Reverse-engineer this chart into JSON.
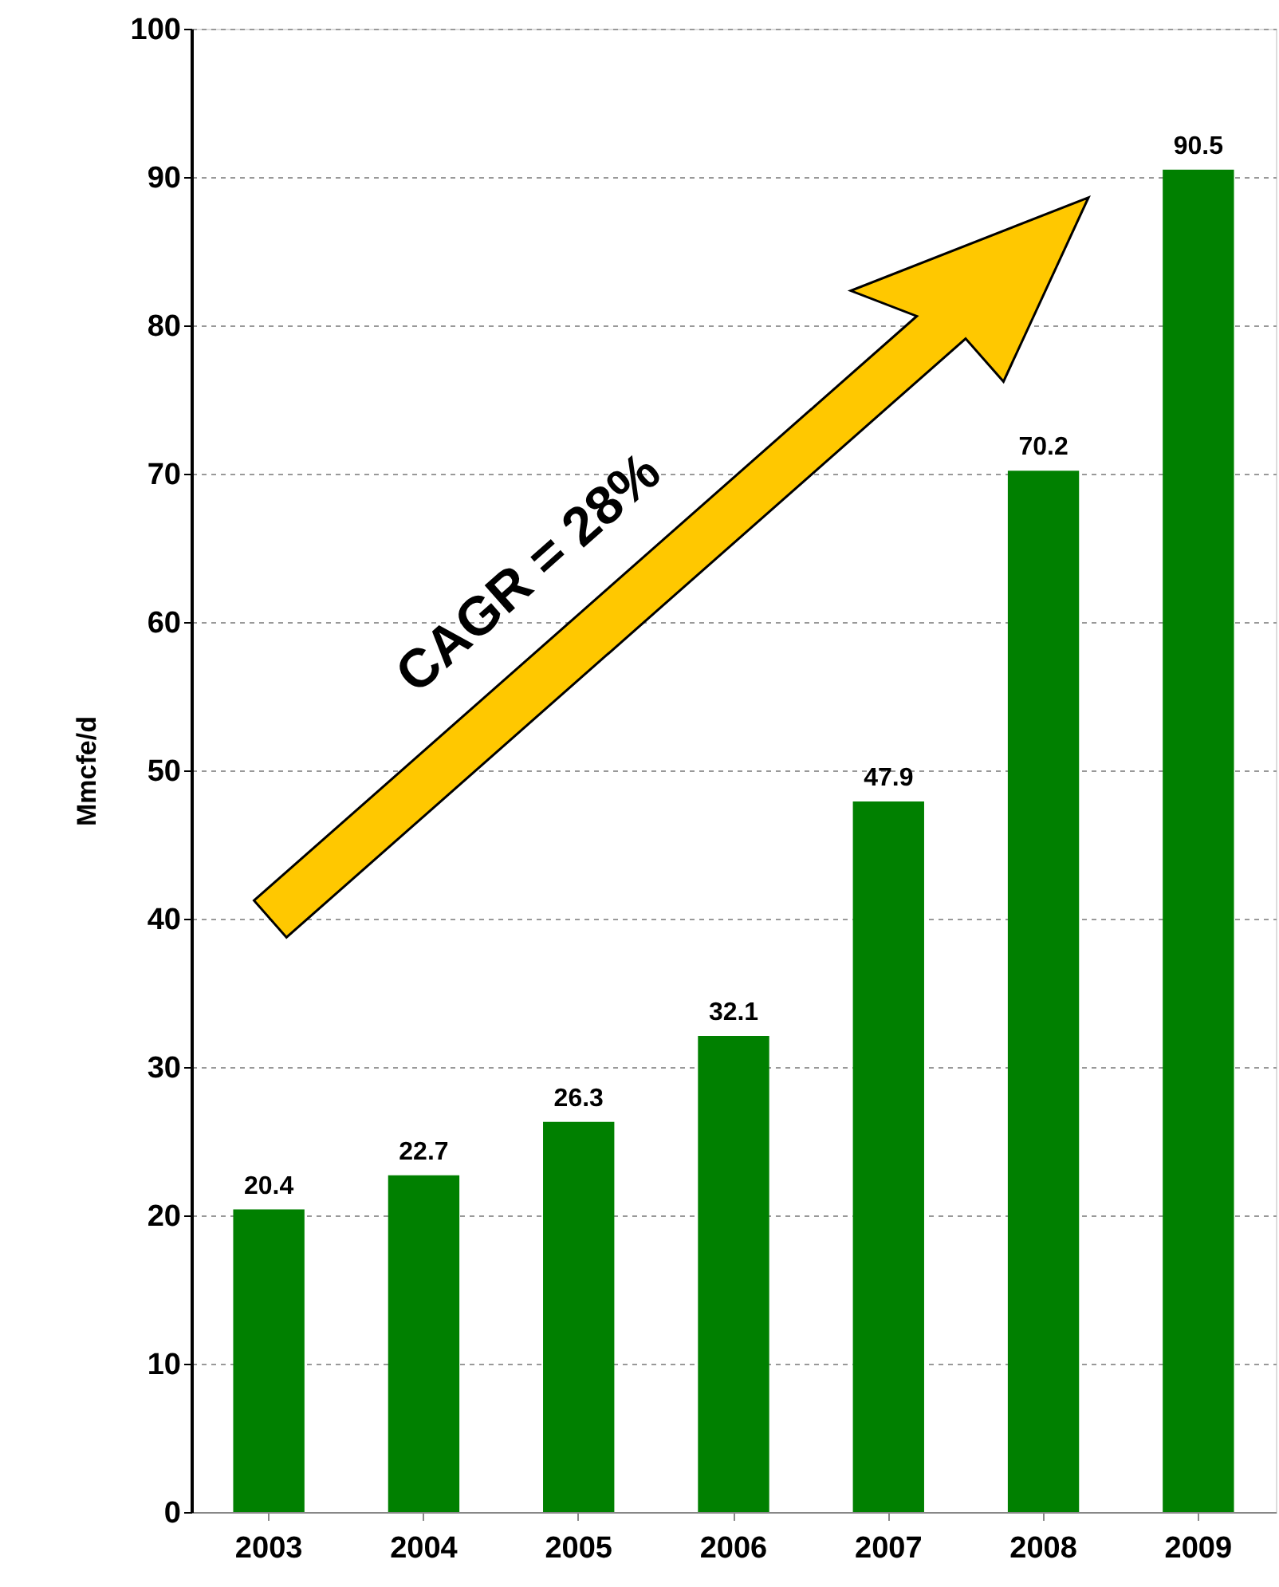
{
  "chart_data": {
    "type": "bar",
    "ylabel": "Mmcfe/d",
    "categories": [
      "2003",
      "2004",
      "2005",
      "2006",
      "2007",
      "2008",
      "2009"
    ],
    "series": [
      {
        "color": "#008000",
        "values": [
          20.4,
          22.7,
          26.3,
          32.1,
          47.9,
          70.2,
          90.5
        ]
      }
    ],
    "ylim": [
      0,
      100
    ],
    "yticks": [
      0,
      10,
      20,
      30,
      40,
      50,
      60,
      70,
      80,
      90,
      100
    ],
    "grid": "y",
    "data_labels": true,
    "annotations": [
      "CAGR = 28%"
    ]
  }
}
